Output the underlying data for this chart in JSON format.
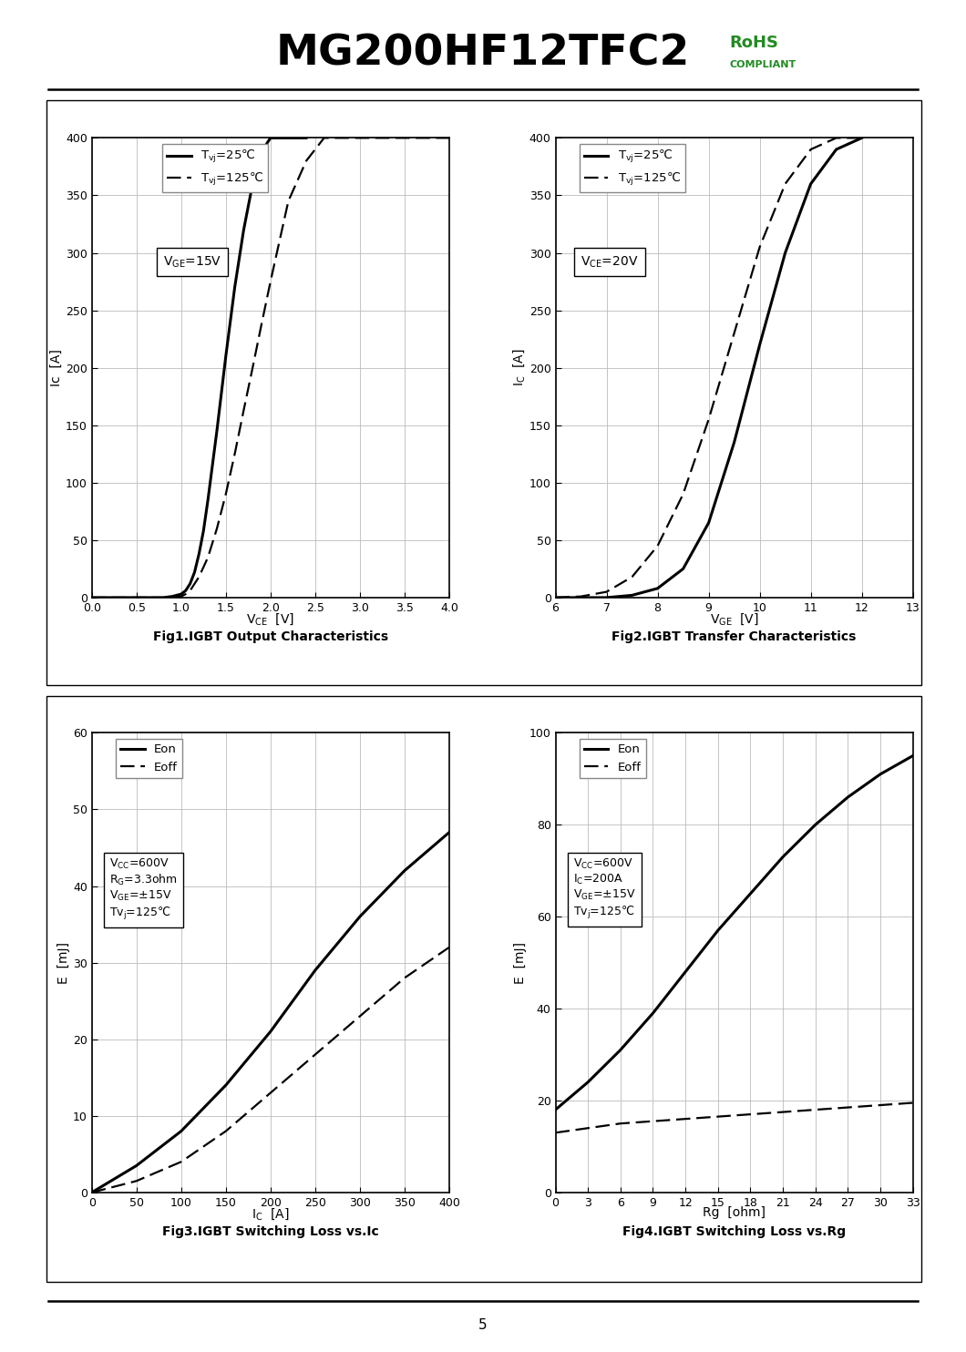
{
  "title": "MG200HF12TFC2",
  "page_num": "5",
  "fig1": {
    "title": "Fig1.IGBT Output Characteristics",
    "xlabel": "V$_{CE}$  [V]",
    "ylabel": "Ic  [A]",
    "xlim": [
      0,
      4
    ],
    "ylim": [
      0,
      400
    ],
    "xticks": [
      0,
      0.5,
      1,
      1.5,
      2,
      2.5,
      3,
      3.5,
      4
    ],
    "yticks": [
      0,
      50,
      100,
      150,
      200,
      250,
      300,
      350,
      400
    ],
    "curve25_x": [
      0,
      0.6,
      0.8,
      0.9,
      1.0,
      1.05,
      1.1,
      1.15,
      1.2,
      1.25,
      1.3,
      1.4,
      1.5,
      1.6,
      1.7,
      1.8,
      1.9,
      2.0,
      2.1,
      2.2,
      2.4
    ],
    "curve25_y": [
      0,
      0,
      0,
      1,
      3,
      6,
      12,
      22,
      38,
      58,
      85,
      145,
      210,
      270,
      320,
      360,
      388,
      400,
      400,
      400,
      400
    ],
    "curve125_x": [
      0,
      0.6,
      0.8,
      0.9,
      1.0,
      1.05,
      1.1,
      1.2,
      1.3,
      1.4,
      1.5,
      1.6,
      1.7,
      1.8,
      1.9,
      2.0,
      2.1,
      2.2,
      2.4,
      2.6,
      2.8,
      3.0,
      3.2,
      3.4,
      3.6,
      3.8,
      4.0
    ],
    "curve125_y": [
      0,
      0,
      0,
      0,
      1,
      3,
      6,
      18,
      35,
      60,
      90,
      125,
      163,
      200,
      238,
      275,
      310,
      345,
      380,
      400,
      400,
      400,
      400,
      400,
      400,
      400,
      400
    ]
  },
  "fig2": {
    "title": "Fig2.IGBT Transfer Characteristics",
    "xlabel": "V$_{GE}$  [V]",
    "ylabel": "I$_C$  [A]",
    "xlim": [
      6,
      13
    ],
    "ylim": [
      0,
      400
    ],
    "xticks": [
      6,
      7,
      8,
      9,
      10,
      11,
      12,
      13
    ],
    "yticks": [
      0,
      50,
      100,
      150,
      200,
      250,
      300,
      350,
      400
    ],
    "curve25_x": [
      6.0,
      6.5,
      7.0,
      7.5,
      8.0,
      8.5,
      9.0,
      9.5,
      10.0,
      10.5,
      11.0,
      11.5,
      12.0
    ],
    "curve25_y": [
      0,
      0,
      0,
      2,
      8,
      25,
      65,
      135,
      220,
      300,
      360,
      390,
      400
    ],
    "curve125_x": [
      6.0,
      6.5,
      7.0,
      7.5,
      8.0,
      8.5,
      9.0,
      9.5,
      10.0,
      10.5,
      11.0,
      11.5,
      12.0
    ],
    "curve125_y": [
      0,
      1,
      5,
      18,
      45,
      90,
      155,
      230,
      305,
      360,
      390,
      400,
      400
    ]
  },
  "fig3": {
    "title": "Fig3.IGBT Switching Loss vs.Ic",
    "xlabel": "I$_C$  [A]",
    "ylabel": "E  [mJ]",
    "xlim": [
      0,
      400
    ],
    "ylim": [
      0,
      60
    ],
    "xticks": [
      0,
      50,
      100,
      150,
      200,
      250,
      300,
      350,
      400
    ],
    "yticks": [
      0,
      10,
      20,
      30,
      40,
      50,
      60
    ],
    "eon_x": [
      0,
      50,
      100,
      150,
      200,
      250,
      300,
      350,
      400
    ],
    "eon_y": [
      0,
      3.5,
      8,
      14,
      21,
      29,
      36,
      42,
      47
    ],
    "eoff_x": [
      0,
      50,
      100,
      150,
      200,
      250,
      300,
      350,
      400
    ],
    "eoff_y": [
      0,
      1.5,
      4,
      8,
      13,
      18,
      23,
      28,
      32
    ]
  },
  "fig4": {
    "title": "Fig4.IGBT Switching Loss vs.Rg",
    "xlabel": "Rg  [ohm]",
    "ylabel": "E  [mJ]",
    "xlim": [
      0,
      33
    ],
    "ylim": [
      0,
      100
    ],
    "xticks": [
      0,
      3,
      6,
      9,
      12,
      15,
      18,
      21,
      24,
      27,
      30,
      33
    ],
    "yticks": [
      0,
      20,
      40,
      60,
      80,
      100
    ],
    "eon_x": [
      0,
      3,
      6,
      9,
      12,
      15,
      18,
      21,
      24,
      27,
      30,
      33
    ],
    "eon_y": [
      18,
      24,
      31,
      39,
      48,
      57,
      65,
      73,
      80,
      86,
      91,
      95
    ],
    "eoff_x": [
      0,
      3,
      6,
      9,
      12,
      15,
      18,
      21,
      24,
      27,
      30,
      33
    ],
    "eoff_y": [
      13,
      14,
      15,
      15.5,
      16,
      16.5,
      17,
      17.5,
      18,
      18.5,
      19,
      19.5
    ]
  }
}
